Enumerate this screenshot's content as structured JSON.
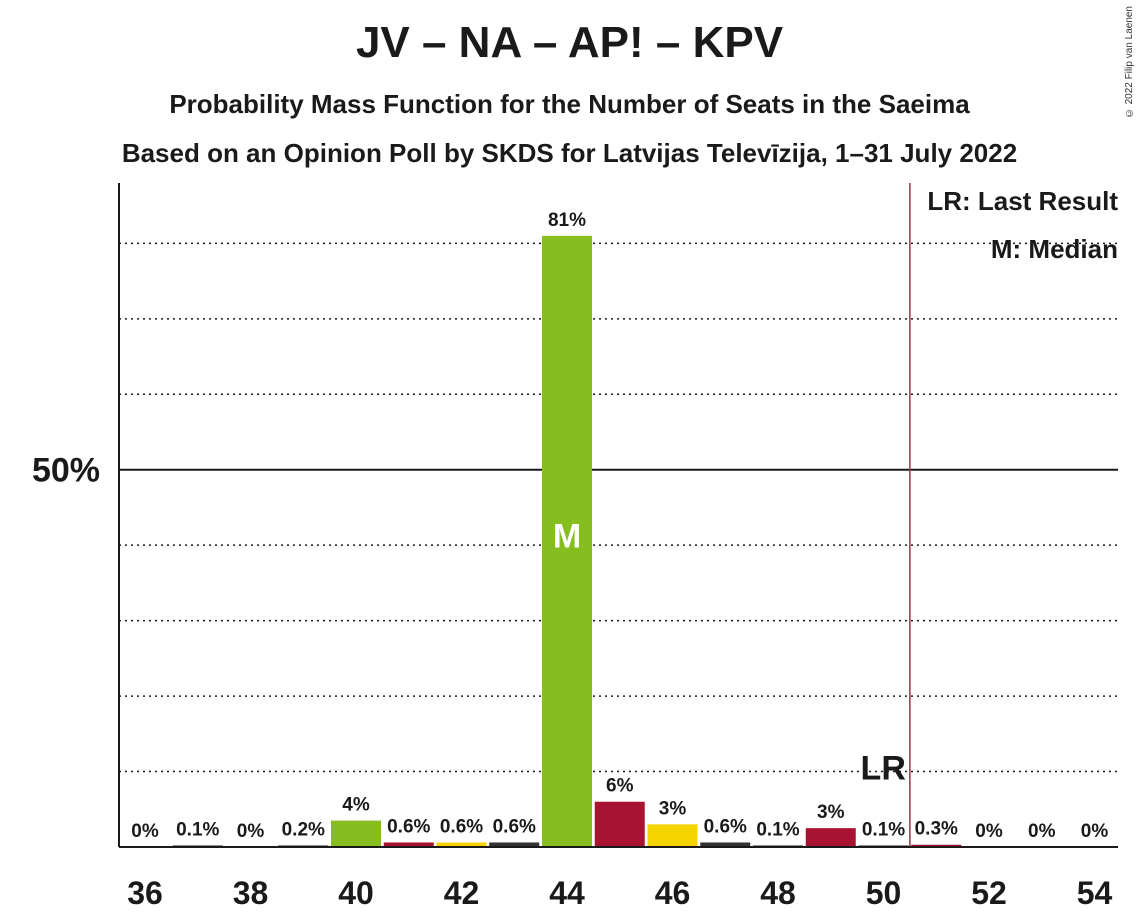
{
  "chart_data": {
    "type": "bar",
    "title": "JV – NA – AP! – KPV",
    "subtitle1": "Probability Mass Function for the Number of Seats in the Saeima",
    "subtitle2": "Based on an Opinion Poll by SKDS for Latvijas Televīzija, 1–31 July 2022",
    "copyright": "© 2022 Filip van Laenen",
    "x": [
      36,
      37,
      38,
      39,
      40,
      41,
      42,
      43,
      44,
      45,
      46,
      47,
      48,
      49,
      50,
      51,
      52,
      53,
      54
    ],
    "values": [
      0,
      0.1,
      0,
      0.2,
      3.5,
      0.6,
      0.6,
      0.6,
      81,
      6,
      3,
      0.6,
      0.1,
      2.5,
      0.1,
      0.3,
      0,
      0,
      0
    ],
    "labels": [
      "0%",
      "0.1%",
      "0%",
      "0.2%",
      "4%",
      "0.6%",
      "0.6%",
      "0.6%",
      "81%",
      "6%",
      "3%",
      "0.6%",
      "0.1%",
      "3%",
      "0.1%",
      "0.3%",
      "0%",
      "0%",
      "0%"
    ],
    "bar_colors": [
      "#1a1a1a",
      "#1a1a1a",
      "#1a1a1a",
      "#1a1a1a",
      "#86bd1f",
      "#a81331",
      "#f5d400",
      "#333333",
      "#86bd1f",
      "#a81331",
      "#f5d400",
      "#333333",
      "#1a1a1a",
      "#a81331",
      "#1a1a1a",
      "#a81331",
      "#1a1a1a",
      "#1a1a1a",
      "#1a1a1a"
    ],
    "xticks": [
      36,
      38,
      40,
      42,
      44,
      46,
      48,
      50,
      52,
      54
    ],
    "ylim": [
      0,
      88
    ],
    "y_label": "50%",
    "y_label_value": 50,
    "gridlines": [
      10,
      20,
      30,
      40,
      60,
      70,
      80
    ],
    "median_seat": 44,
    "median_marker": "M",
    "last_result_seat": 50.5,
    "last_result_marker": "LR",
    "legend": {
      "position": "top-right",
      "items": [
        "LR: Last Result",
        "M: Median"
      ]
    },
    "colors": {
      "lr_line": "#8b3a3a",
      "axis": "#1a1a1a"
    }
  }
}
